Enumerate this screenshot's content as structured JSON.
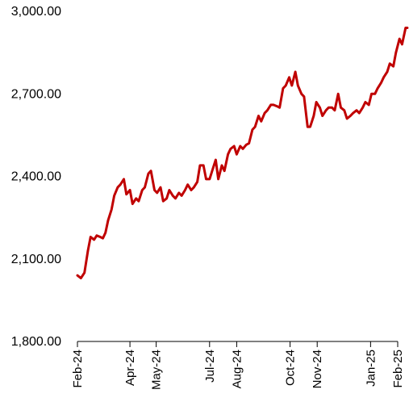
{
  "chart_data": {
    "type": "line",
    "title": "",
    "xlabel": "",
    "ylabel": "",
    "ylim": [
      1800,
      3000
    ],
    "yticks": [
      "1,800.00",
      "2,100.00",
      "2,400.00",
      "2,700.00",
      "3,000.00"
    ],
    "ytick_values": [
      1800,
      2100,
      2400,
      2700,
      3000
    ],
    "xticks": [
      "Feb-24",
      "Apr-24",
      "May-24",
      "Jul-24",
      "Aug-24",
      "Oct-24",
      "Nov-24",
      "Jan-25",
      "Feb-25"
    ],
    "xtick_dates": [
      "2024-02-01",
      "2024-04-01",
      "2024-05-01",
      "2024-07-01",
      "2024-08-01",
      "2024-10-01",
      "2024-11-01",
      "2025-01-01",
      "2025-02-01"
    ],
    "grid": false,
    "legend": "none",
    "line_color": "#C00000",
    "series": [
      {
        "x": [
          "2024-02-01",
          "2024-02-05",
          "2024-02-09",
          "2024-02-13",
          "2024-02-16",
          "2024-02-20",
          "2024-02-23",
          "2024-02-27",
          "2024-03-01",
          "2024-03-04",
          "2024-03-07",
          "2024-03-11",
          "2024-03-14",
          "2024-03-18",
          "2024-03-21",
          "2024-03-25",
          "2024-03-28",
          "2024-04-01",
          "2024-04-04",
          "2024-04-08",
          "2024-04-11",
          "2024-04-15",
          "2024-04-18",
          "2024-04-22",
          "2024-04-25",
          "2024-04-29",
          "2024-05-02",
          "2024-05-06",
          "2024-05-09",
          "2024-05-13",
          "2024-05-16",
          "2024-05-20",
          "2024-05-23",
          "2024-05-27",
          "2024-05-30",
          "2024-06-03",
          "2024-06-06",
          "2024-06-10",
          "2024-06-13",
          "2024-06-17",
          "2024-06-20",
          "2024-06-24",
          "2024-06-27",
          "2024-07-01",
          "2024-07-04",
          "2024-07-08",
          "2024-07-11",
          "2024-07-15",
          "2024-07-18",
          "2024-07-22",
          "2024-07-25",
          "2024-07-29",
          "2024-08-01",
          "2024-08-05",
          "2024-08-08",
          "2024-08-12",
          "2024-08-15",
          "2024-08-19",
          "2024-08-22",
          "2024-08-26",
          "2024-08-29",
          "2024-09-02",
          "2024-09-05",
          "2024-09-09",
          "2024-09-12",
          "2024-09-16",
          "2024-09-19",
          "2024-09-23",
          "2024-09-26",
          "2024-09-30",
          "2024-10-03",
          "2024-10-07",
          "2024-10-10",
          "2024-10-14",
          "2024-10-17",
          "2024-10-21",
          "2024-10-24",
          "2024-10-28",
          "2024-10-31",
          "2024-11-04",
          "2024-11-07",
          "2024-11-11",
          "2024-11-14",
          "2024-11-18",
          "2024-11-21",
          "2024-11-25",
          "2024-11-28",
          "2024-12-02",
          "2024-12-05",
          "2024-12-09",
          "2024-12-12",
          "2024-12-16",
          "2024-12-19",
          "2024-12-23",
          "2024-12-26",
          "2024-12-30",
          "2025-01-02",
          "2025-01-06",
          "2025-01-09",
          "2025-01-13",
          "2025-01-16",
          "2025-01-20",
          "2025-01-23",
          "2025-01-27",
          "2025-01-30",
          "2025-02-03",
          "2025-02-06",
          "2025-02-10",
          "2025-02-12"
        ],
        "values": [
          2040,
          2030,
          2050,
          2130,
          2180,
          2170,
          2185,
          2180,
          2175,
          2195,
          2240,
          2280,
          2330,
          2360,
          2370,
          2390,
          2335,
          2350,
          2300,
          2320,
          2310,
          2350,
          2360,
          2410,
          2420,
          2350,
          2340,
          2360,
          2310,
          2320,
          2350,
          2330,
          2320,
          2340,
          2330,
          2350,
          2370,
          2350,
          2360,
          2380,
          2440,
          2440,
          2390,
          2390,
          2420,
          2460,
          2390,
          2440,
          2420,
          2480,
          2500,
          2510,
          2480,
          2510,
          2500,
          2515,
          2520,
          2570,
          2580,
          2620,
          2600,
          2630,
          2640,
          2660,
          2660,
          2655,
          2650,
          2720,
          2730,
          2760,
          2730,
          2780,
          2730,
          2700,
          2690,
          2580,
          2580,
          2620,
          2670,
          2650,
          2620,
          2640,
          2650,
          2650,
          2640,
          2700,
          2650,
          2640,
          2610,
          2620,
          2630,
          2640,
          2630,
          2650,
          2670,
          2660,
          2700,
          2700,
          2720,
          2740,
          2760,
          2780,
          2810,
          2800,
          2850,
          2900,
          2880,
          2940,
          2940
        ]
      }
    ]
  }
}
